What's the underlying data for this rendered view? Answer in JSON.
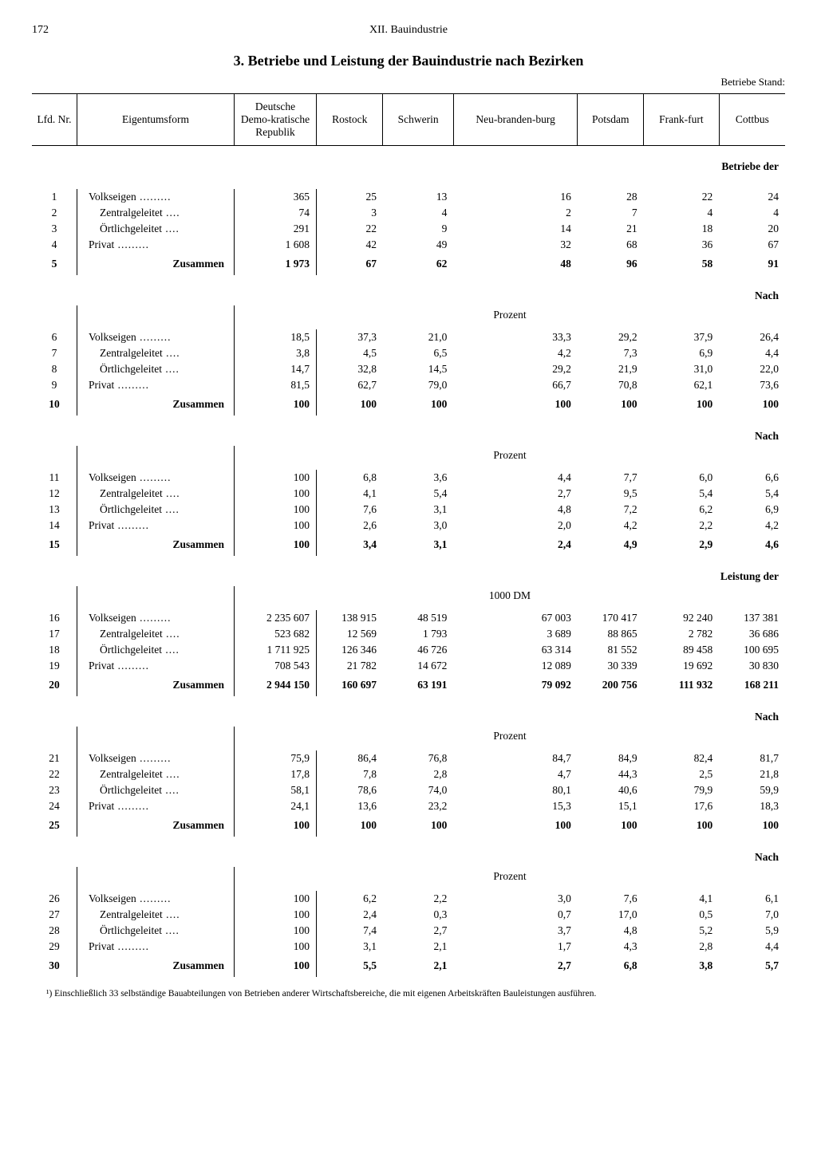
{
  "page_number": "172",
  "chapter": "XII. Bauindustrie",
  "title": "3. Betriebe und Leistung der Bauindustrie nach Bezirken",
  "stand_label": "Betriebe Stand:",
  "columns": {
    "lfd": "Lfd.\nNr.",
    "eigentum": "Eigentumsform",
    "ddr": "Deutsche Demo-kratische Republik",
    "rostock": "Rostock",
    "schwerin": "Schwerin",
    "neubrand": "Neu-branden-burg",
    "potsdam": "Potsdam",
    "frankfurt": "Frank-furt",
    "cottbus": "Cottbus"
  },
  "row_labels": {
    "volkseigen": "Volkseigen",
    "zentral": "Zentralgeleitet",
    "oertlich": "Örtlichgeleitet",
    "privat": "Privat",
    "zusammen": "Zusammen"
  },
  "sections": [
    {
      "right_label": "Betriebe der",
      "center_label": "",
      "rows": [
        {
          "n": "1",
          "l": "volkseigen",
          "v": [
            "365",
            "25",
            "13",
            "16",
            "28",
            "22",
            "24"
          ]
        },
        {
          "n": "2",
          "l": "zentral",
          "indent": true,
          "v": [
            "74",
            "3",
            "4",
            "2",
            "7",
            "4",
            "4"
          ]
        },
        {
          "n": "3",
          "l": "oertlich",
          "indent": true,
          "v": [
            "291",
            "22",
            "9",
            "14",
            "21",
            "18",
            "20"
          ]
        },
        {
          "n": "4",
          "l": "privat",
          "v": [
            "1 608",
            "42",
            "49",
            "32",
            "68",
            "36",
            "67"
          ]
        }
      ],
      "sum": {
        "n": "5",
        "v": [
          "1 973",
          "67",
          "62",
          "48",
          "96",
          "58",
          "91"
        ]
      }
    },
    {
      "right_label": "Nach",
      "center_label": "Prozent",
      "rows": [
        {
          "n": "6",
          "l": "volkseigen",
          "v": [
            "18,5",
            "37,3",
            "21,0",
            "33,3",
            "29,2",
            "37,9",
            "26,4"
          ]
        },
        {
          "n": "7",
          "l": "zentral",
          "indent": true,
          "v": [
            "3,8",
            "4,5",
            "6,5",
            "4,2",
            "7,3",
            "6,9",
            "4,4"
          ]
        },
        {
          "n": "8",
          "l": "oertlich",
          "indent": true,
          "v": [
            "14,7",
            "32,8",
            "14,5",
            "29,2",
            "21,9",
            "31,0",
            "22,0"
          ]
        },
        {
          "n": "9",
          "l": "privat",
          "v": [
            "81,5",
            "62,7",
            "79,0",
            "66,7",
            "70,8",
            "62,1",
            "73,6"
          ]
        }
      ],
      "sum": {
        "n": "10",
        "v": [
          "100",
          "100",
          "100",
          "100",
          "100",
          "100",
          "100"
        ]
      }
    },
    {
      "right_label": "Nach",
      "center_label": "Prozent",
      "rows": [
        {
          "n": "11",
          "l": "volkseigen",
          "v": [
            "100",
            "6,8",
            "3,6",
            "4,4",
            "7,7",
            "6,0",
            "6,6"
          ]
        },
        {
          "n": "12",
          "l": "zentral",
          "indent": true,
          "v": [
            "100",
            "4,1",
            "5,4",
            "2,7",
            "9,5",
            "5,4",
            "5,4"
          ]
        },
        {
          "n": "13",
          "l": "oertlich",
          "indent": true,
          "v": [
            "100",
            "7,6",
            "3,1",
            "4,8",
            "7,2",
            "6,2",
            "6,9"
          ]
        },
        {
          "n": "14",
          "l": "privat",
          "v": [
            "100",
            "2,6",
            "3,0",
            "2,0",
            "4,2",
            "2,2",
            "4,2"
          ]
        }
      ],
      "sum": {
        "n": "15",
        "v": [
          "100",
          "3,4",
          "3,1",
          "2,4",
          "4,9",
          "2,9",
          "4,6"
        ]
      }
    },
    {
      "right_label": "Leistung der",
      "center_label": "1000 DM",
      "rows": [
        {
          "n": "16",
          "l": "volkseigen",
          "v": [
            "2 235 607",
            "138 915",
            "48 519",
            "67 003",
            "170 417",
            "92 240",
            "137 381"
          ]
        },
        {
          "n": "17",
          "l": "zentral",
          "indent": true,
          "v": [
            "523 682",
            "12 569",
            "1 793",
            "3 689",
            "88 865",
            "2 782",
            "36 686"
          ]
        },
        {
          "n": "18",
          "l": "oertlich",
          "indent": true,
          "v": [
            "1 711 925",
            "126 346",
            "46 726",
            "63 314",
            "81 552",
            "89 458",
            "100 695"
          ]
        },
        {
          "n": "19",
          "l": "privat",
          "v": [
            "708 543",
            "21 782",
            "14 672",
            "12 089",
            "30 339",
            "19 692",
            "30 830"
          ]
        }
      ],
      "sum": {
        "n": "20",
        "v": [
          "2 944 150",
          "160 697",
          "63 191",
          "79 092",
          "200 756",
          "111 932",
          "168 211"
        ]
      }
    },
    {
      "right_label": "Nach",
      "center_label": "Prozent",
      "rows": [
        {
          "n": "21",
          "l": "volkseigen",
          "v": [
            "75,9",
            "86,4",
            "76,8",
            "84,7",
            "84,9",
            "82,4",
            "81,7"
          ]
        },
        {
          "n": "22",
          "l": "zentral",
          "indent": true,
          "v": [
            "17,8",
            "7,8",
            "2,8",
            "4,7",
            "44,3",
            "2,5",
            "21,8"
          ]
        },
        {
          "n": "23",
          "l": "oertlich",
          "indent": true,
          "v": [
            "58,1",
            "78,6",
            "74,0",
            "80,1",
            "40,6",
            "79,9",
            "59,9"
          ]
        },
        {
          "n": "24",
          "l": "privat",
          "v": [
            "24,1",
            "13,6",
            "23,2",
            "15,3",
            "15,1",
            "17,6",
            "18,3"
          ]
        }
      ],
      "sum": {
        "n": "25",
        "v": [
          "100",
          "100",
          "100",
          "100",
          "100",
          "100",
          "100"
        ]
      }
    },
    {
      "right_label": "Nach",
      "center_label": "Prozent",
      "rows": [
        {
          "n": "26",
          "l": "volkseigen",
          "v": [
            "100",
            "6,2",
            "2,2",
            "3,0",
            "7,6",
            "4,1",
            "6,1"
          ]
        },
        {
          "n": "27",
          "l": "zentral",
          "indent": true,
          "v": [
            "100",
            "2,4",
            "0,3",
            "0,7",
            "17,0",
            "0,5",
            "7,0"
          ]
        },
        {
          "n": "28",
          "l": "oertlich",
          "indent": true,
          "v": [
            "100",
            "7,4",
            "2,7",
            "3,7",
            "4,8",
            "5,2",
            "5,9"
          ]
        },
        {
          "n": "29",
          "l": "privat",
          "v": [
            "100",
            "3,1",
            "2,1",
            "1,7",
            "4,3",
            "2,8",
            "4,4"
          ]
        }
      ],
      "sum": {
        "n": "30",
        "v": [
          "100",
          "5,5",
          "2,1",
          "2,7",
          "6,8",
          "3,8",
          "5,7"
        ]
      }
    }
  ],
  "footnote": "¹) Einschließlich 33 selbständige Bauabteilungen von Betrieben anderer Wirtschaftsbereiche, die mit eigenen Arbeitskräften Bauleistungen ausführen."
}
